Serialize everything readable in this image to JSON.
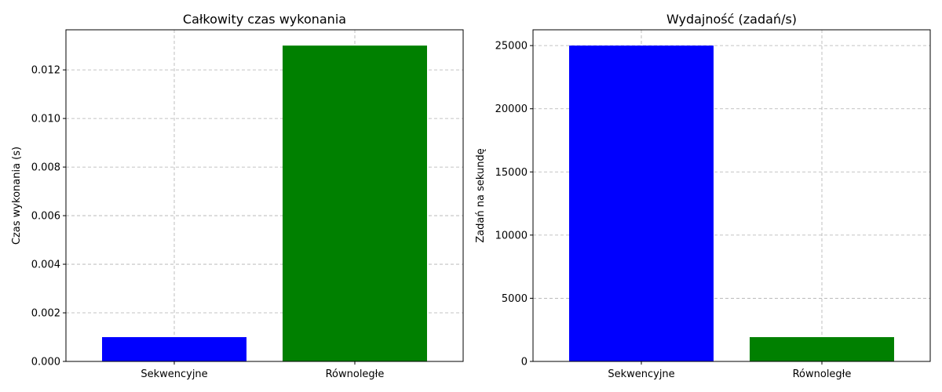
{
  "chart_data": [
    {
      "type": "bar",
      "title": "Całkowity czas wykonania",
      "xlabel": "",
      "ylabel": "Czas wykonania (s)",
      "categories": [
        "Sekwencyjne",
        "Równoległe"
      ],
      "values": [
        0.001,
        0.013
      ],
      "colors": [
        "#0000ff",
        "#008000"
      ],
      "ylim": [
        0,
        0.01365
      ],
      "yticks": [
        "0.000",
        "0.002",
        "0.004",
        "0.006",
        "0.008",
        "0.010",
        "0.012"
      ],
      "ytick_values": [
        0,
        0.002,
        0.004,
        0.006,
        0.008,
        0.01,
        0.012
      ],
      "grid": true
    },
    {
      "type": "bar",
      "title": "Wydajność (zadań/s)",
      "xlabel": "",
      "ylabel": "Zadań na sekundę",
      "categories": [
        "Sekwencyjne",
        "Równoległe"
      ],
      "values": [
        25000,
        1923
      ],
      "colors": [
        "#0000ff",
        "#008000"
      ],
      "ylim": [
        0,
        26250
      ],
      "yticks": [
        "0",
        "5000",
        "10000",
        "15000",
        "20000",
        "25000"
      ],
      "ytick_values": [
        0,
        5000,
        10000,
        15000,
        20000,
        25000
      ],
      "grid": true
    }
  ]
}
